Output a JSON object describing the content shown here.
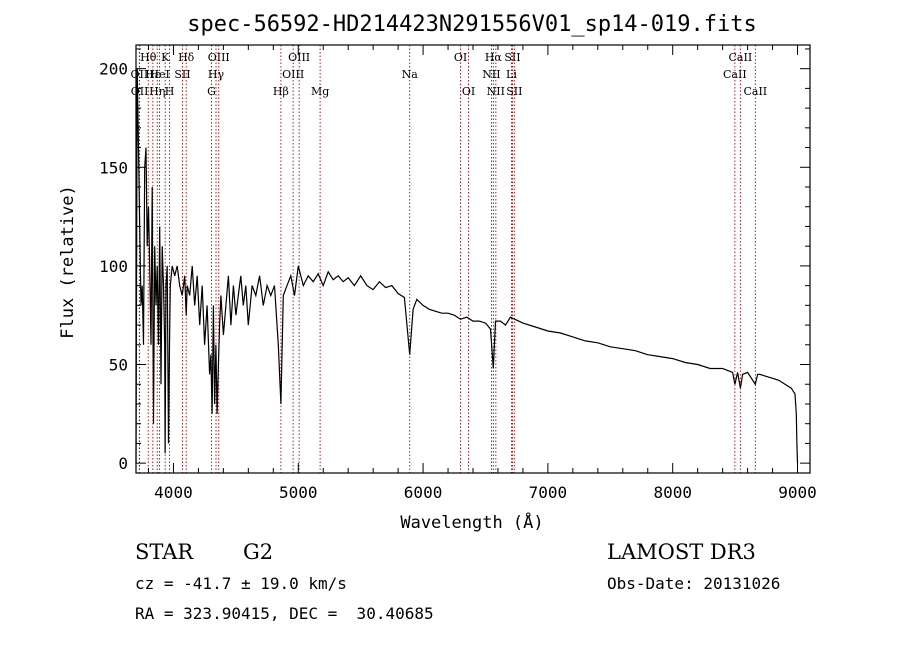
{
  "chart_data": {
    "type": "line",
    "title": "spec-56592-HD214423N291556V01_sp14-019.fits",
    "xlabel": "Wavelength (Å)",
    "ylabel": "Flux (relative)",
    "xlim": [
      3700,
      9100
    ],
    "ylim": [
      -5,
      212
    ],
    "xticks": [
      4000,
      5000,
      6000,
      7000,
      8000,
      9000
    ],
    "yticks": [
      0,
      50,
      100,
      150,
      200
    ],
    "series": [
      {
        "name": "spectrum",
        "x": [
          3700,
          3710,
          3720,
          3730,
          3740,
          3750,
          3760,
          3770,
          3780,
          3790,
          3800,
          3810,
          3820,
          3830,
          3840,
          3850,
          3860,
          3870,
          3880,
          3890,
          3900,
          3910,
          3920,
          3930,
          3933,
          3940,
          3950,
          3960,
          3968,
          3975,
          3990,
          4010,
          4030,
          4050,
          4070,
          4090,
          4102,
          4110,
          4130,
          4150,
          4170,
          4190,
          4210,
          4230,
          4250,
          4270,
          4290,
          4300,
          4310,
          4320,
          4330,
          4340,
          4350,
          4360,
          4370,
          4380,
          4400,
          4420,
          4440,
          4460,
          4480,
          4500,
          4520,
          4540,
          4560,
          4580,
          4600,
          4630,
          4660,
          4690,
          4720,
          4750,
          4780,
          4810,
          4840,
          4861,
          4880,
          4910,
          4940,
          4970,
          5000,
          5040,
          5080,
          5120,
          5160,
          5200,
          5240,
          5280,
          5320,
          5360,
          5400,
          5450,
          5500,
          5550,
          5600,
          5650,
          5700,
          5750,
          5800,
          5850,
          5893,
          5920,
          5950,
          6000,
          6050,
          6100,
          6150,
          6200,
          6250,
          6300,
          6350,
          6400,
          6450,
          6500,
          6540,
          6563,
          6580,
          6620,
          6660,
          6700,
          6800,
          6900,
          7000,
          7100,
          7200,
          7300,
          7400,
          7500,
          7600,
          7700,
          7800,
          7900,
          8000,
          8100,
          8200,
          8300,
          8400,
          8480,
          8498,
          8520,
          8542,
          8560,
          8600,
          8662,
          8680,
          8700,
          8750,
          8800,
          8850,
          8900,
          8950,
          8980,
          8990,
          8995,
          9000
        ],
        "y": [
          0,
          200,
          160,
          120,
          80,
          90,
          60,
          150,
          160,
          110,
          130,
          100,
          60,
          140,
          20,
          110,
          80,
          100,
          60,
          120,
          40,
          110,
          90,
          60,
          5,
          90,
          100,
          10,
          60,
          90,
          100,
          95,
          100,
          90,
          85,
          95,
          75,
          90,
          85,
          100,
          80,
          95,
          70,
          90,
          60,
          80,
          45,
          55,
          25,
          80,
          30,
          60,
          25,
          50,
          70,
          85,
          65,
          80,
          95,
          70,
          90,
          75,
          85,
          95,
          80,
          90,
          70,
          90,
          85,
          95,
          80,
          90,
          85,
          90,
          60,
          30,
          85,
          90,
          95,
          85,
          100,
          90,
          95,
          92,
          96,
          90,
          97,
          93,
          95,
          92,
          94,
          90,
          95,
          90,
          88,
          92,
          89,
          90,
          86,
          84,
          55,
          78,
          83,
          80,
          78,
          77,
          76,
          76,
          75,
          73,
          74,
          72,
          72,
          71,
          68,
          48,
          72,
          72,
          70,
          74,
          71,
          69,
          67,
          66,
          64,
          62,
          61,
          59,
          58,
          57,
          55,
          54,
          53,
          51,
          50,
          48,
          48,
          46,
          40,
          46,
          38,
          45,
          46,
          40,
          45,
          45,
          44,
          43,
          42,
          40,
          38,
          35,
          25,
          10,
          0
        ]
      }
    ],
    "lines": [
      {
        "label": "Hθ",
        "wl": 3798,
        "row": 1
      },
      {
        "label": "OII",
        "wl": 3727,
        "row": 2
      },
      {
        "label": "OII",
        "wl": 3729,
        "row": 3
      },
      {
        "label": "Hε",
        "wl": 3835,
        "row": 2
      },
      {
        "label": "Hη",
        "wl": 3870,
        "row": 3
      },
      {
        "label": "K",
        "wl": 3934,
        "row": 1
      },
      {
        "label": "HeI",
        "wl": 3889,
        "row": 2
      },
      {
        "label": "H",
        "wl": 3969,
        "row": 3
      },
      {
        "label": "SII",
        "wl": 4072,
        "row": 2
      },
      {
        "label": "Hδ",
        "wl": 4102,
        "row": 1
      },
      {
        "label": "OIII",
        "wl": 4363,
        "row": 1
      },
      {
        "label": "Hγ",
        "wl": 4341,
        "row": 2
      },
      {
        "label": "G",
        "wl": 4305,
        "row": 3
      },
      {
        "label": "Hβ",
        "wl": 4861,
        "row": 3
      },
      {
        "label": "OIII",
        "wl": 5007,
        "row": 1
      },
      {
        "label": "OIII",
        "wl": 4959,
        "row": 2
      },
      {
        "label": "Mg",
        "wl": 5175,
        "row": 3
      },
      {
        "label": "Na",
        "wl": 5893,
        "row": 2
      },
      {
        "label": "OI",
        "wl": 6300,
        "row": 1
      },
      {
        "label": "OI",
        "wl": 6364,
        "row": 3
      },
      {
        "label": "Hα",
        "wl": 6563,
        "row": 1
      },
      {
        "label": "SII",
        "wl": 6716,
        "row": 1
      },
      {
        "label": "NII",
        "wl": 6548,
        "row": 2
      },
      {
        "label": "Li",
        "wl": 6708,
        "row": 2
      },
      {
        "label": "NII",
        "wl": 6583,
        "row": 3
      },
      {
        "label": "SII",
        "wl": 6731,
        "row": 3
      },
      {
        "label": "CaII",
        "wl": 8542,
        "row": 1
      },
      {
        "label": "CaII",
        "wl": 8498,
        "row": 2
      },
      {
        "label": "CaII",
        "wl": 8662,
        "row": 3
      }
    ]
  },
  "info": {
    "object_class": "STAR",
    "subclass": "G2",
    "survey": "LAMOST DR3",
    "cz": "cz = -41.7 ± 19.0 km/s",
    "obs_date": "Obs-Date: 20131026",
    "coords": "RA = 323.90415, DEC =  30.40685"
  },
  "colors": {
    "line_marker": "#b40000",
    "spectrum": "#000000"
  }
}
